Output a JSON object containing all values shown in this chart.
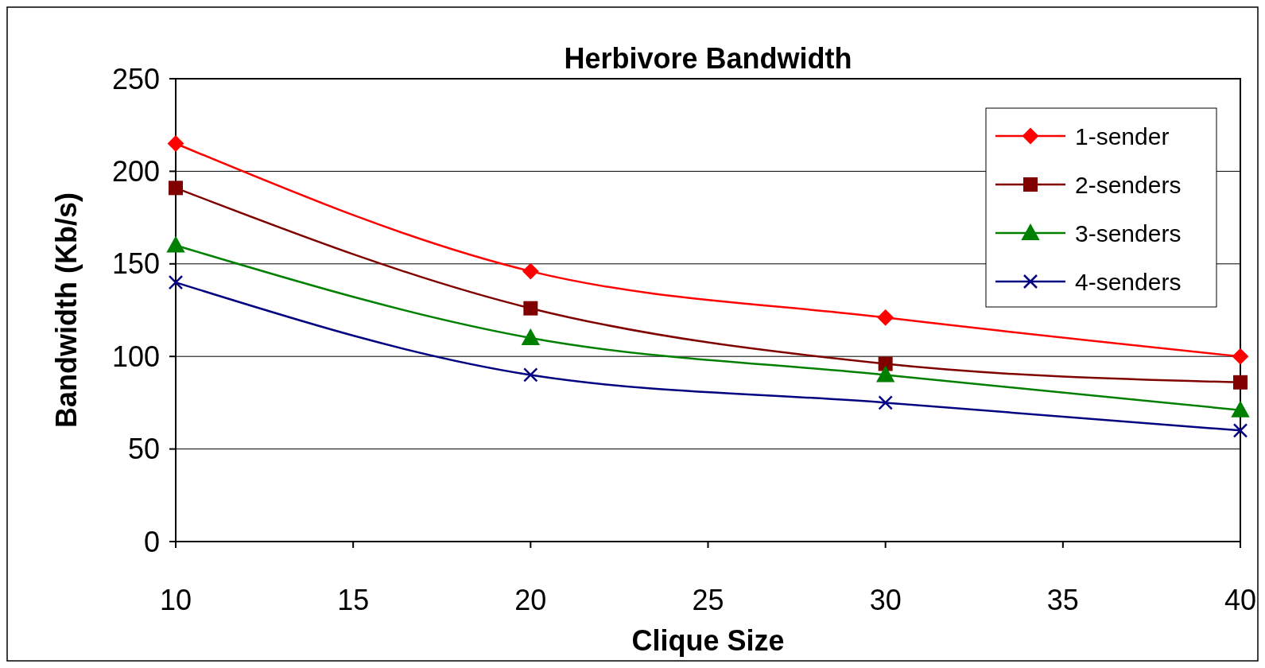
{
  "chart_data": {
    "type": "line",
    "title": "Herbivore Bandwidth",
    "xlabel": "Clique Size",
    "ylabel": "Bandwidth (Kb/s)",
    "x": [
      10,
      20,
      30,
      40
    ],
    "xlim": [
      10,
      40
    ],
    "xticks": [
      10,
      15,
      20,
      25,
      30,
      35,
      40
    ],
    "ylim": [
      0,
      250
    ],
    "yticks": [
      0,
      50,
      100,
      150,
      200,
      250
    ],
    "grid": "y",
    "legend": "top right",
    "series": [
      {
        "name": "1-sender",
        "color": "#ff0000",
        "marker": "diamond",
        "values": [
          215,
          146,
          121,
          100
        ]
      },
      {
        "name": "2-senders",
        "color": "#800000",
        "marker": "square",
        "values": [
          191,
          126,
          96,
          86
        ]
      },
      {
        "name": "3-senders",
        "color": "#008000",
        "marker": "triangle",
        "values": [
          160,
          110,
          90,
          71
        ]
      },
      {
        "name": "4-senders",
        "color": "#000080",
        "marker": "cross",
        "values": [
          140,
          90,
          75,
          60
        ]
      }
    ]
  }
}
